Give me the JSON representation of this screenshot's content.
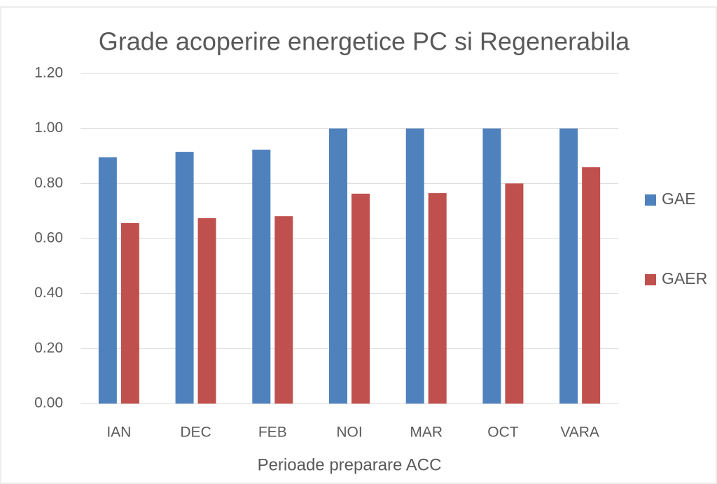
{
  "chart_data": {
    "type": "bar",
    "title": "Grade acoperire energetice PC si Regenerabila",
    "x_label": "Perioade preparare ACC",
    "categories": [
      "IAN",
      "DEC",
      "FEB",
      "NOI",
      "MAR",
      "OCT",
      "VARA"
    ],
    "series": [
      {
        "name": "GAE",
        "color": "#4f81bd",
        "values": [
          0.895,
          0.915,
          0.923,
          1.0,
          1.0,
          1.0,
          1.0
        ]
      },
      {
        "name": "GAER",
        "color": "#c0504d",
        "values": [
          0.656,
          0.674,
          0.681,
          0.763,
          0.765,
          0.8,
          0.859
        ]
      }
    ],
    "ylim": [
      0,
      1.2
    ],
    "yticks": [
      {
        "value": 0,
        "label": "0.00"
      },
      {
        "value": 0.2,
        "label": "0.20"
      },
      {
        "value": 0.4,
        "label": "0.40"
      },
      {
        "value": 0.6,
        "label": "0.60"
      },
      {
        "value": 0.8,
        "label": "0.80"
      },
      {
        "value": 1.0,
        "label": "1.00"
      },
      {
        "value": 1.2,
        "label": "1.20"
      }
    ],
    "grid": true,
    "legend": "right"
  }
}
